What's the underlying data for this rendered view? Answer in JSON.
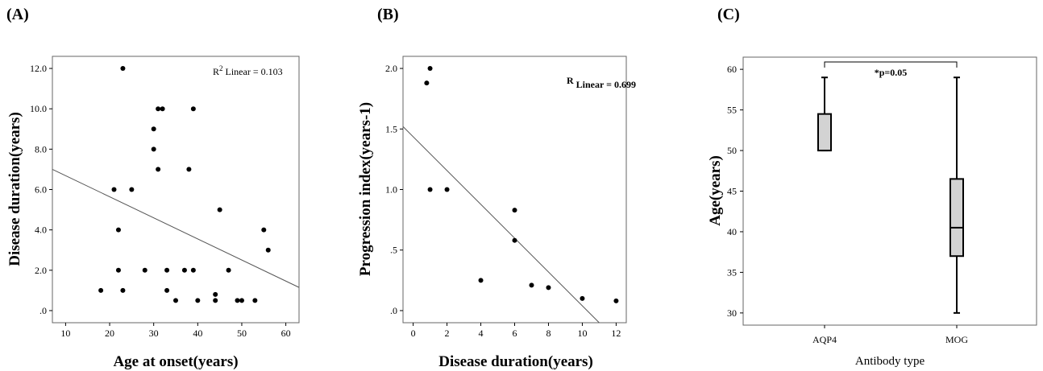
{
  "chart_data": [
    {
      "panel_label": "(A)",
      "type": "scatter",
      "xlabel": "Age at onset(years)",
      "ylabel": "Disease duration(years)",
      "xlim": [
        7,
        63
      ],
      "ylim": [
        -0.6,
        12.6
      ],
      "x_ticks": [
        10,
        20,
        30,
        40,
        50,
        60
      ],
      "x_tick_labels": [
        "10",
        "20",
        "30",
        "40",
        "50",
        "60"
      ],
      "y_ticks": [
        0,
        2,
        4,
        6,
        8,
        10,
        12
      ],
      "y_tick_labels": [
        ".0",
        "2.0",
        "4.0",
        "6.0",
        "8.0",
        "10.0",
        "12.0"
      ],
      "annotation": {
        "prefix": "R",
        "superscript": "2",
        "text": " Linear = 0.103"
      },
      "fit_line": {
        "x": [
          7,
          63
        ],
        "y": [
          7.0,
          1.15
        ]
      },
      "points": [
        {
          "x": 18,
          "y": 1
        },
        {
          "x": 21,
          "y": 6
        },
        {
          "x": 22,
          "y": 4
        },
        {
          "x": 22,
          "y": 2
        },
        {
          "x": 23,
          "y": 12
        },
        {
          "x": 23,
          "y": 1
        },
        {
          "x": 25,
          "y": 6
        },
        {
          "x": 28,
          "y": 2
        },
        {
          "x": 30,
          "y": 9
        },
        {
          "x": 30,
          "y": 8
        },
        {
          "x": 31,
          "y": 10
        },
        {
          "x": 31,
          "y": 7
        },
        {
          "x": 32,
          "y": 10
        },
        {
          "x": 33,
          "y": 2
        },
        {
          "x": 33,
          "y": 1
        },
        {
          "x": 35,
          "y": 0.5
        },
        {
          "x": 37,
          "y": 2
        },
        {
          "x": 38,
          "y": 7
        },
        {
          "x": 39,
          "y": 10
        },
        {
          "x": 39,
          "y": 2
        },
        {
          "x": 40,
          "y": 0.5
        },
        {
          "x": 44,
          "y": 0.8
        },
        {
          "x": 44,
          "y": 0.5
        },
        {
          "x": 45,
          "y": 5
        },
        {
          "x": 47,
          "y": 2
        },
        {
          "x": 49,
          "y": 0.5
        },
        {
          "x": 50,
          "y": 0.5
        },
        {
          "x": 53,
          "y": 0.5
        },
        {
          "x": 55,
          "y": 4
        },
        {
          "x": 56,
          "y": 3
        }
      ]
    },
    {
      "panel_label": "(B)",
      "type": "scatter",
      "xlabel": "Disease duration(years)",
      "ylabel": "Progression index(years-1)",
      "xlim": [
        -0.6,
        12.6
      ],
      "ylim": [
        -0.1,
        2.1
      ],
      "x_ticks": [
        0,
        2,
        4,
        6,
        8,
        10,
        12
      ],
      "x_tick_labels": [
        "0",
        "2",
        "4",
        "6",
        "8",
        "10",
        "12"
      ],
      "y_ticks": [
        0,
        0.5,
        1.0,
        1.5,
        2.0
      ],
      "y_tick_labels": [
        ".0",
        ".5",
        "1.0",
        "1.5",
        "2.0"
      ],
      "annotation": {
        "prefix": "R",
        "superscript": "",
        "text": " Linear = 0.699"
      },
      "fit_line": {
        "x": [
          -0.6,
          11.0
        ],
        "y": [
          1.52,
          -0.1
        ]
      },
      "points": [
        {
          "x": 0.8,
          "y": 1.88
        },
        {
          "x": 1,
          "y": 2.0
        },
        {
          "x": 1,
          "y": 1.0
        },
        {
          "x": 2,
          "y": 1.0
        },
        {
          "x": 4,
          "y": 0.25
        },
        {
          "x": 6,
          "y": 0.83
        },
        {
          "x": 6,
          "y": 0.58
        },
        {
          "x": 7,
          "y": 0.21
        },
        {
          "x": 8,
          "y": 0.19
        },
        {
          "x": 10,
          "y": 0.1
        },
        {
          "x": 12,
          "y": 0.08
        }
      ]
    },
    {
      "panel_label": "(C)",
      "type": "box",
      "xlabel": "Antibody type",
      "ylabel": "Age(years)",
      "ylim": [
        28.5,
        61.5
      ],
      "y_ticks": [
        30,
        35,
        40,
        45,
        50,
        55,
        60
      ],
      "y_tick_labels": [
        "30",
        "35",
        "40",
        "45",
        "50",
        "55",
        "60"
      ],
      "categories": [
        "AQP4",
        "MOG"
      ],
      "boxes": [
        {
          "name": "AQP4",
          "whisker_low": 50,
          "q1": 50,
          "median": 50,
          "q3": 54.5,
          "whisker_high": 59
        },
        {
          "name": "MOG",
          "whisker_low": 30,
          "q1": 37,
          "median": 40.5,
          "q3": 46.5,
          "whisker_high": 59
        }
      ],
      "significance": "*p=0.05",
      "colors": {
        "box_fill": "#d3d3d3"
      }
    }
  ]
}
